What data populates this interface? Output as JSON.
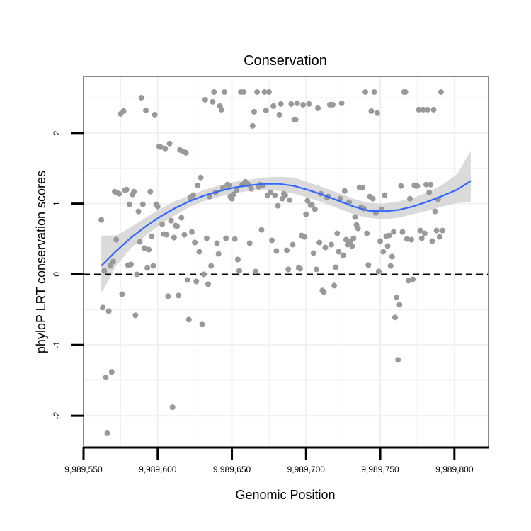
{
  "chart_data": {
    "type": "scatter",
    "title": "Conservation",
    "xlabel": "Genomic Position",
    "ylabel": "phyloP LRT conservation scores",
    "xlim": [
      9989550,
      9989823
    ],
    "ylim": [
      -2.45,
      2.8
    ],
    "x_ticks": [
      9989550,
      9989600,
      9989650,
      9989700,
      9989750,
      9989800
    ],
    "x_tick_labels": [
      "9,989,550",
      "9,989,600",
      "9,989,650",
      "9,989,700",
      "9,989,750",
      "9,989,800"
    ],
    "y_ticks": [
      -2,
      -1,
      0,
      1,
      2
    ],
    "y_tick_labels": [
      "-2",
      "-1",
      "0",
      "1",
      "2"
    ],
    "grid": true,
    "reference_line": {
      "y": 0,
      "style": "dashed"
    },
    "colors": {
      "points": "#999999",
      "smooth": "#3366ff",
      "band": "#d3d3d3",
      "grid": "#f0f0f0",
      "frame": "#888888"
    },
    "points": [
      [
        9989562,
        0.77
      ],
      [
        9989563,
        -0.47
      ],
      [
        9989564,
        0.05
      ],
      [
        9989565,
        -1.46
      ],
      [
        9989566,
        -2.25
      ],
      [
        9989567,
        -0.52
      ],
      [
        9989568,
        0.12
      ],
      [
        9989569,
        -1.38
      ],
      [
        9989570,
        0.18
      ],
      [
        9989571,
        1.17
      ],
      [
        9989572,
        0.49
      ],
      [
        9989573,
        1.15
      ],
      [
        9989574,
        1.14
      ],
      [
        9989575,
        2.27
      ],
      [
        9989576,
        -0.28
      ],
      [
        9989577,
        2.31
      ],
      [
        9989578,
        1.19
      ],
      [
        9989579,
        1.2
      ],
      [
        9989580,
        0.13
      ],
      [
        9989581,
        0.99
      ],
      [
        9989582,
        0.14
      ],
      [
        9989583,
        1.13
      ],
      [
        9989584,
        1.17
      ],
      [
        9989585,
        -0.58
      ],
      [
        9989586,
        0.0
      ],
      [
        9989587,
        0.89
      ],
      [
        9989588,
        0.46
      ],
      [
        9989589,
        2.5
      ],
      [
        9989590,
        0.99
      ],
      [
        9989591,
        0.37
      ],
      [
        9989592,
        2.32
      ],
      [
        9989593,
        0.09
      ],
      [
        9989594,
        0.35
      ],
      [
        9989595,
        1.17
      ],
      [
        9989596,
        0.54
      ],
      [
        9989597,
        0.12
      ],
      [
        9989598,
        2.26
      ],
      [
        9989599,
        0.99
      ],
      [
        9989600,
        0.96
      ],
      [
        9989601,
        1.81
      ],
      [
        9989602,
        1.8
      ],
      [
        9989603,
        0.71
      ],
      [
        9989604,
        0.57
      ],
      [
        9989605,
        1.78
      ],
      [
        9989606,
        0.56
      ],
      [
        9989607,
        -0.31
      ],
      [
        9989608,
        1.85
      ],
      [
        9989609,
        0.76
      ],
      [
        9989610,
        -1.88
      ],
      [
        9989611,
        0.52
      ],
      [
        9989612,
        0.69
      ],
      [
        9989613,
        0.68
      ],
      [
        9989614,
        -0.3
      ],
      [
        9989615,
        1.76
      ],
      [
        9989616,
        0.8
      ],
      [
        9989617,
        1.74
      ],
      [
        9989618,
        0.56
      ],
      [
        9989619,
        1.72
      ],
      [
        9989620,
        -0.08
      ],
      [
        9989621,
        -0.64
      ],
      [
        9989622,
        1.09
      ],
      [
        9989623,
        0.6
      ],
      [
        9989624,
        1.12
      ],
      [
        9989625,
        0.45
      ],
      [
        9989626,
        -0.1
      ],
      [
        9989627,
        1.26
      ],
      [
        9989628,
        0.32
      ],
      [
        9989629,
        1.37
      ],
      [
        9989630,
        -0.71
      ],
      [
        9989631,
        0.0
      ],
      [
        9989632,
        2.47
      ],
      [
        9989633,
        0.51
      ],
      [
        9989634,
        -0.14
      ],
      [
        9989635,
        1.1
      ],
      [
        9989636,
        0.12
      ],
      [
        9989637,
        2.44
      ],
      [
        9989638,
        2.58
      ],
      [
        9989639,
        1.16
      ],
      [
        9989640,
        0.44
      ],
      [
        9989641,
        0.29
      ],
      [
        9989642,
        2.38
      ],
      [
        9989643,
        2.33
      ],
      [
        9989644,
        1.22
      ],
      [
        9989645,
        2.58
      ],
      [
        9989646,
        0.51
      ],
      [
        9989647,
        1.27
      ],
      [
        9989648,
        1.26
      ],
      [
        9989649,
        1.1
      ],
      [
        9989650,
        1.07
      ],
      [
        9989651,
        1.13
      ],
      [
        9989652,
        0.5
      ],
      [
        9989653,
        1.19
      ],
      [
        9989654,
        0.21
      ],
      [
        9989655,
        0.05
      ],
      [
        9989656,
        2.58
      ],
      [
        9989657,
        1.27
      ],
      [
        9989658,
        2.58
      ],
      [
        9989659,
        1.31
      ],
      [
        9989660,
        1.29
      ],
      [
        9989661,
        1.27
      ],
      [
        9989662,
        0.44
      ],
      [
        9989663,
        1.21
      ],
      [
        9989664,
        2.1
      ],
      [
        9989665,
        2.3
      ],
      [
        9989666,
        0.04
      ],
      [
        9989667,
        2.58
      ],
      [
        9989668,
        1.24
      ],
      [
        9989669,
        1.27
      ],
      [
        9989670,
        0.63
      ],
      [
        9989671,
        1.26
      ],
      [
        9989672,
        2.58
      ],
      [
        9989673,
        2.32
      ],
      [
        9989674,
        1.12
      ],
      [
        9989675,
        2.58
      ],
      [
        9989676,
        1.16
      ],
      [
        9989677,
        0.48
      ],
      [
        9989678,
        2.38
      ],
      [
        9989679,
        1.12
      ],
      [
        9989680,
        0.33
      ],
      [
        9989681,
        0.97
      ],
      [
        9989682,
        2.26
      ],
      [
        9989683,
        2.41
      ],
      [
        9989684,
        1.07
      ],
      [
        9989685,
        1.14
      ],
      [
        9989686,
        1.12
      ],
      [
        9989687,
        0.34
      ],
      [
        9989688,
        0.07
      ],
      [
        9989689,
        1.05
      ],
      [
        9989690,
        2.41
      ],
      [
        9989691,
        0.42
      ],
      [
        9989692,
        2.19
      ],
      [
        9989693,
        2.19
      ],
      [
        9989694,
        2.42
      ],
      [
        9989695,
        0.09
      ],
      [
        9989696,
        0.08
      ],
      [
        9989697,
        0.55
      ],
      [
        9989698,
        2.4
      ],
      [
        9989699,
        0.53
      ],
      [
        9989700,
        0.85
      ],
      [
        9989701,
        1.04
      ],
      [
        9989702,
        2.41
      ],
      [
        9989703,
        0.98
      ],
      [
        9989704,
        0.98
      ],
      [
        9989705,
        0.3
      ],
      [
        9989706,
        0.92
      ],
      [
        9989707,
        0.07
      ],
      [
        9989708,
        2.35
      ],
      [
        9989709,
        0.45
      ],
      [
        9989710,
        1.14
      ],
      [
        9989711,
        -0.23
      ],
      [
        9989712,
        -0.25
      ],
      [
        9989713,
        0.38
      ],
      [
        9989714,
        1.09
      ],
      [
        9989715,
        1.1
      ],
      [
        9989716,
        2.4
      ],
      [
        9989717,
        0.42
      ],
      [
        9989718,
        2.4
      ],
      [
        9989719,
        -0.16
      ],
      [
        9989720,
        0.1
      ],
      [
        9989721,
        0.58
      ],
      [
        9989722,
        0.32
      ],
      [
        9989723,
        1.07
      ],
      [
        9989724,
        2.42
      ],
      [
        9989725,
        0.27
      ],
      [
        9989726,
        1.18
      ],
      [
        9989727,
        0.49
      ],
      [
        9989728,
        0.42
      ],
      [
        9989729,
        1.02
      ],
      [
        9989730,
        0.47
      ],
      [
        9989731,
        0.4
      ],
      [
        9989732,
        0.51
      ],
      [
        9989733,
        0.81
      ],
      [
        9989734,
        0.7
      ],
      [
        9989735,
        0.65
      ],
      [
        9989736,
        1.23
      ],
      [
        9989737,
        0.95
      ],
      [
        9989738,
        1.23
      ],
      [
        9989739,
        0.93
      ],
      [
        9989740,
        2.58
      ],
      [
        9989741,
        0.58
      ],
      [
        9989742,
        0.13
      ],
      [
        9989743,
        1.1
      ],
      [
        9989744,
        2.31
      ],
      [
        9989745,
        1.07
      ],
      [
        9989746,
        2.58
      ],
      [
        9989747,
        0.87
      ],
      [
        9989748,
        2.28
      ],
      [
        9989749,
        0.04
      ],
      [
        9989750,
        0.47
      ],
      [
        9989751,
        0.92
      ],
      [
        9989752,
        0.32
      ],
      [
        9989753,
        1.12
      ],
      [
        9989754,
        0.54
      ],
      [
        9989755,
        0.4
      ],
      [
        9989756,
        0.55
      ],
      [
        9989757,
        0.12
      ],
      [
        9989758,
        0.25
      ],
      [
        9989759,
        0.6
      ],
      [
        9989760,
        -0.61
      ],
      [
        9989761,
        -0.33
      ],
      [
        9989762,
        -1.21
      ],
      [
        9989763,
        -0.43
      ],
      [
        9989764,
        1.25
      ],
      [
        9989765,
        0.6
      ],
      [
        9989766,
        2.58
      ],
      [
        9989767,
        2.58
      ],
      [
        9989768,
        0.5
      ],
      [
        9989769,
        -0.09
      ],
      [
        9989770,
        1.07
      ],
      [
        9989771,
        0.49
      ],
      [
        9989772,
        -0.07
      ],
      [
        9989773,
        1.26
      ],
      [
        9989774,
        1.25
      ],
      [
        9989775,
        1.25
      ],
      [
        9989776,
        2.33
      ],
      [
        9989777,
        0.62
      ],
      [
        9989778,
        0.51
      ],
      [
        9989779,
        2.33
      ],
      [
        9989780,
        0.58
      ],
      [
        9989781,
        1.27
      ],
      [
        9989782,
        2.33
      ],
      [
        9989783,
        1.16
      ],
      [
        9989784,
        1.27
      ],
      [
        9989785,
        0.47
      ],
      [
        9989786,
        2.33
      ],
      [
        9989787,
        0.89
      ],
      [
        9989788,
        0.62
      ],
      [
        9989789,
        1.06
      ],
      [
        9989790,
        0.53
      ],
      [
        9989791,
        2.58
      ],
      [
        9989792,
        0.62
      ]
    ],
    "smooth_x": [
      9989562,
      9989572,
      9989582,
      9989592,
      9989602,
      9989612,
      9989622,
      9989632,
      9989642,
      9989652,
      9989662,
      9989672,
      9989682,
      9989692,
      9989702,
      9989712,
      9989722,
      9989732,
      9989742,
      9989752,
      9989762,
      9989772,
      9989782,
      9989792,
      9989802,
      9989811
    ],
    "smooth_y": [
      0.12,
      0.33,
      0.52,
      0.68,
      0.82,
      0.94,
      1.04,
      1.12,
      1.18,
      1.23,
      1.26,
      1.28,
      1.28,
      1.25,
      1.19,
      1.12,
      1.04,
      0.96,
      0.9,
      0.89,
      0.91,
      0.96,
      1.03,
      1.11,
      1.2,
      1.32
    ],
    "smooth_lo": [
      -0.27,
      0.12,
      0.37,
      0.55,
      0.71,
      0.84,
      0.96,
      1.04,
      1.1,
      1.15,
      1.18,
      1.2,
      1.18,
      1.14,
      1.08,
      1.01,
      0.93,
      0.85,
      0.8,
      0.78,
      0.8,
      0.85,
      0.9,
      0.96,
      1.01,
      1.02
    ],
    "smooth_hi": [
      0.55,
      0.55,
      0.67,
      0.8,
      0.93,
      1.04,
      1.12,
      1.2,
      1.26,
      1.31,
      1.34,
      1.37,
      1.38,
      1.37,
      1.3,
      1.23,
      1.15,
      1.07,
      1.01,
      1.0,
      1.03,
      1.08,
      1.16,
      1.27,
      1.42,
      1.75
    ]
  }
}
